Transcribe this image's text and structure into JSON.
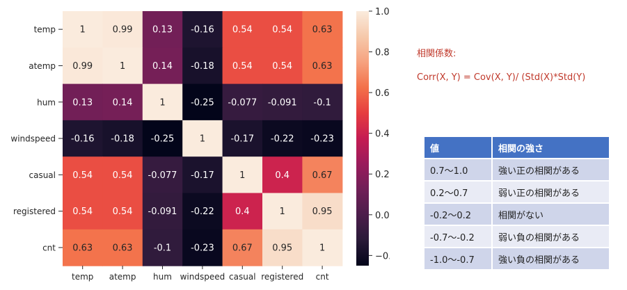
{
  "chart_data": {
    "type": "heatmap",
    "title": "",
    "row_labels": [
      "temp",
      "atemp",
      "hum",
      "windspeed",
      "casual",
      "registered",
      "cnt"
    ],
    "col_labels": [
      "temp",
      "atemp",
      "hum",
      "windspeed",
      "casual",
      "registered",
      "cnt"
    ],
    "values": [
      [
        1,
        0.99,
        0.13,
        -0.16,
        0.54,
        0.54,
        0.63
      ],
      [
        0.99,
        1,
        0.14,
        -0.18,
        0.54,
        0.54,
        0.63
      ],
      [
        0.13,
        0.14,
        1,
        -0.25,
        -0.077,
        -0.091,
        -0.1
      ],
      [
        -0.16,
        -0.18,
        -0.25,
        1,
        -0.17,
        -0.22,
        -0.23
      ],
      [
        0.54,
        0.54,
        -0.077,
        -0.17,
        1,
        0.4,
        0.67
      ],
      [
        0.54,
        0.54,
        -0.091,
        -0.22,
        0.4,
        1,
        0.95
      ],
      [
        0.63,
        0.63,
        -0.1,
        -0.23,
        0.67,
        0.95,
        1
      ]
    ],
    "colorbar": {
      "min": -0.25,
      "max": 1.0,
      "ticks": [
        1.0,
        0.8,
        0.6,
        0.4,
        0.2,
        0.0,
        -0.2
      ],
      "tick_labels": [
        "1.0",
        "0.8",
        "0.6",
        "0.4",
        "0.2",
        "0.0",
        "−0.2"
      ],
      "colormap": "rocket",
      "stops": [
        "#03051a",
        "#291a38",
        "#4c1d4b",
        "#701f57",
        "#9a1b5b",
        "#c51c52",
        "#e63d3f",
        "#f3714a",
        "#f6a27f",
        "#f6c9ab",
        "#faebdd"
      ]
    }
  },
  "note": {
    "title": "相関係数:",
    "formula": "Corr(X, Y) = Cov(X, Y)/ (Std(X)*Std(Y)"
  },
  "table": {
    "headers": [
      "値",
      "相関の強さ"
    ],
    "rows": [
      [
        "0.7〜1.0",
        "強い正の相関がある"
      ],
      [
        "0.2〜0.7",
        "弱い正の相関がある"
      ],
      [
        "-0.2〜0.2",
        "相関がない"
      ],
      [
        "-0.7〜-0.2",
        "弱い負の相関がある"
      ],
      [
        "-1.0〜-0.7",
        "強い負の相関がある"
      ]
    ]
  },
  "colors": {
    "note_text": "#c0392b",
    "table_header": "#4472c4",
    "row_dark": "#cfd5ea",
    "row_light": "#e9ebf5"
  }
}
